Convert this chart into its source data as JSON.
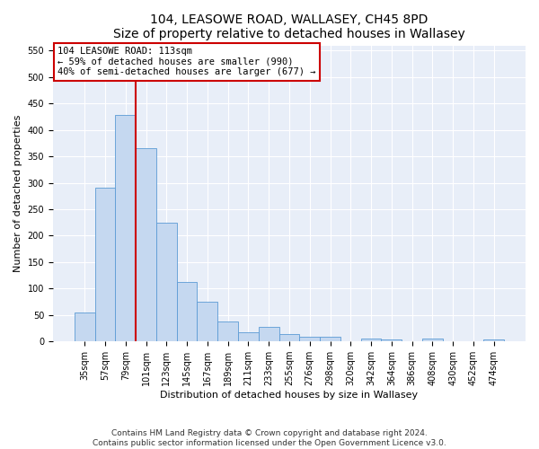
{
  "title": "104, LEASOWE ROAD, WALLASEY, CH45 8PD",
  "subtitle": "Size of property relative to detached houses in Wallasey",
  "xlabel": "Distribution of detached houses by size in Wallasey",
  "ylabel": "Number of detached properties",
  "categories": [
    "35sqm",
    "57sqm",
    "79sqm",
    "101sqm",
    "123sqm",
    "145sqm",
    "167sqm",
    "189sqm",
    "211sqm",
    "233sqm",
    "255sqm",
    "276sqm",
    "298sqm",
    "320sqm",
    "342sqm",
    "364sqm",
    "386sqm",
    "408sqm",
    "430sqm",
    "452sqm",
    "474sqm"
  ],
  "values": [
    55,
    291,
    428,
    365,
    225,
    113,
    75,
    38,
    17,
    27,
    14,
    9,
    9,
    0,
    5,
    4,
    0,
    6,
    0,
    0,
    4
  ],
  "bar_color": "#c5d8f0",
  "bar_edge_color": "#5b9bd5",
  "vline_x": 2.5,
  "vline_color": "#cc0000",
  "annotation_text": "104 LEASOWE ROAD: 113sqm\n← 59% of detached houses are smaller (990)\n40% of semi-detached houses are larger (677) →",
  "annotation_box_color": "#ffffff",
  "annotation_box_edge": "#cc0000",
  "ylim": [
    0,
    560
  ],
  "yticks": [
    0,
    50,
    100,
    150,
    200,
    250,
    300,
    350,
    400,
    450,
    500,
    550
  ],
  "background_color": "#ffffff",
  "plot_bg_color": "#e8eef8",
  "grid_color": "#ffffff",
  "footer": "Contains HM Land Registry data © Crown copyright and database right 2024.\nContains public sector information licensed under the Open Government Licence v3.0.",
  "title_fontsize": 10,
  "subtitle_fontsize": 9,
  "xlabel_fontsize": 8,
  "ylabel_fontsize": 8,
  "tick_fontsize": 7,
  "annotation_fontsize": 7.5,
  "footer_fontsize": 6.5
}
